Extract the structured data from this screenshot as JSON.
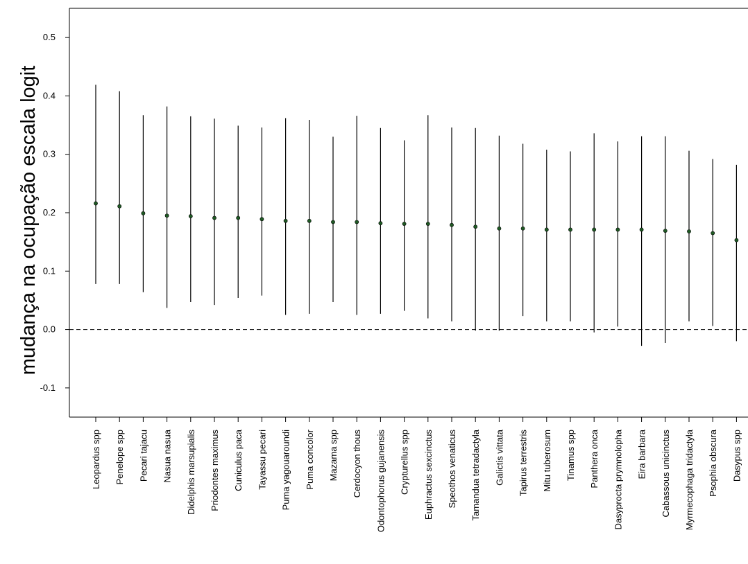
{
  "chart_data": {
    "type": "scatter",
    "ylabel": "mudança na ocupação escala logit",
    "ylim": [
      -0.15,
      0.55
    ],
    "yticks": [
      "0.5",
      "0.4",
      "0.3",
      "0.2",
      "0.1",
      "0.0",
      "-0.1"
    ],
    "yticks_values": [
      0.5,
      0.4,
      0.3,
      0.2,
      0.1,
      0.0,
      -0.1
    ],
    "reference_line": {
      "y": 0.0,
      "style": "dashed"
    },
    "grid": false,
    "point_color": "#1f5a24",
    "categories": [
      "Leopardus spp",
      "Penelope spp",
      "Pecari tajacu",
      "Nasua nasua",
      "Didelphis marsupialis",
      "Priodontes maximus",
      "Cuniculus paca",
      "Tayassu pecari",
      "Puma yagouaroundi",
      "Puma concolor",
      "Mazama spp",
      "Cerdocyon thous",
      "Odontophorus gujanensis",
      "Crypturellus spp",
      "Euphractus sexcinctus",
      "Speothos venaticus",
      "Tamandua tetradactyla",
      "Galictis vittata",
      "Tapirus terrestris",
      "Mitu tuberosum",
      "Tinamus spp",
      "Panthera onca",
      "Dasyprocta prymnolopha",
      "Eira barbara",
      "Cabassous unicinctus",
      "Myrmecophaga tridactyla",
      "Psophia obscura",
      "Dasypus spp"
    ],
    "estimate": [
      0.216,
      0.211,
      0.199,
      0.195,
      0.194,
      0.191,
      0.191,
      0.189,
      0.186,
      0.186,
      0.184,
      0.184,
      0.182,
      0.181,
      0.181,
      0.179,
      0.176,
      0.173,
      0.173,
      0.171,
      0.171,
      0.171,
      0.171,
      0.171,
      0.169,
      0.168,
      0.165,
      0.153
    ],
    "lower": [
      0.078,
      0.078,
      0.064,
      0.037,
      0.047,
      0.042,
      0.054,
      0.058,
      0.025,
      0.027,
      0.047,
      0.025,
      0.027,
      0.032,
      0.019,
      0.014,
      -0.002,
      -0.002,
      0.023,
      0.014,
      0.014,
      -0.005,
      0.005,
      -0.028,
      -0.023,
      0.014,
      0.006,
      -0.02
    ],
    "upper": [
      0.419,
      0.408,
      0.367,
      0.382,
      0.365,
      0.361,
      0.349,
      0.346,
      0.362,
      0.359,
      0.33,
      0.366,
      0.345,
      0.324,
      0.367,
      0.346,
      0.345,
      0.332,
      0.318,
      0.308,
      0.305,
      0.336,
      0.322,
      0.331,
      0.331,
      0.306,
      0.292,
      0.282
    ]
  }
}
